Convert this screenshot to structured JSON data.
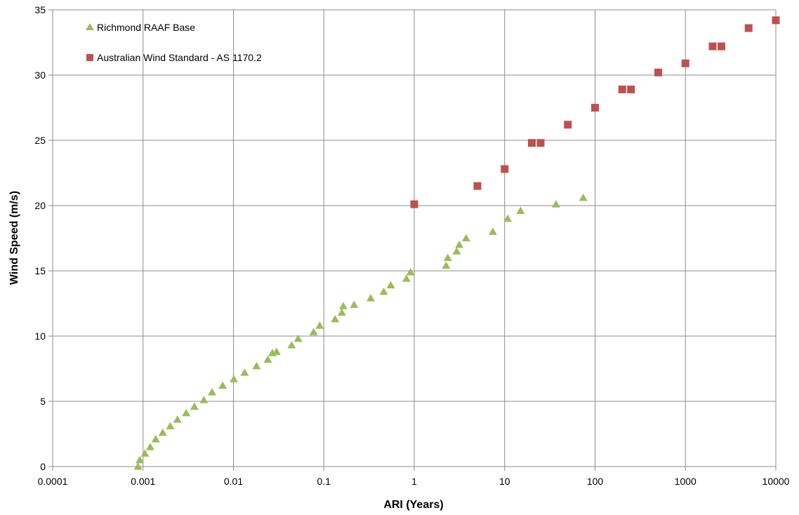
{
  "chart_data": {
    "type": "scatter",
    "title": "",
    "xlabel": "ARI (Years)",
    "ylabel": "Wind Speed (m/s)",
    "x_scale": "log",
    "xlim": [
      0.0001,
      10000
    ],
    "ylim": [
      0,
      35
    ],
    "x_ticks": [
      "0.0001",
      "0.001",
      "0.01",
      "0.1",
      "1",
      "10",
      "100",
      "1000",
      "10000"
    ],
    "y_ticks": [
      "0",
      "5",
      "10",
      "15",
      "20",
      "25",
      "30",
      "35"
    ],
    "grid": true,
    "legend_position": "top-left",
    "series": [
      {
        "name": "Richmond RAAF Base",
        "marker": "triangle",
        "color": "#9bbb59",
        "points": [
          [
            0.00088,
            0.0
          ],
          [
            0.00092,
            0.5
          ],
          [
            0.00105,
            1.0
          ],
          [
            0.0012,
            1.5
          ],
          [
            0.00138,
            2.1
          ],
          [
            0.00165,
            2.6
          ],
          [
            0.002,
            3.1
          ],
          [
            0.0024,
            3.6
          ],
          [
            0.003,
            4.1
          ],
          [
            0.0037,
            4.6
          ],
          [
            0.0047,
            5.1
          ],
          [
            0.0058,
            5.7
          ],
          [
            0.0076,
            6.2
          ],
          [
            0.0101,
            6.7
          ],
          [
            0.0133,
            7.2
          ],
          [
            0.018,
            7.7
          ],
          [
            0.024,
            8.2
          ],
          [
            0.027,
            8.7
          ],
          [
            0.03,
            8.8
          ],
          [
            0.044,
            9.3
          ],
          [
            0.052,
            9.8
          ],
          [
            0.077,
            10.3
          ],
          [
            0.09,
            10.8
          ],
          [
            0.133,
            11.3
          ],
          [
            0.158,
            11.8
          ],
          [
            0.164,
            12.3
          ],
          [
            0.216,
            12.4
          ],
          [
            0.33,
            12.9
          ],
          [
            0.46,
            13.4
          ],
          [
            0.55,
            13.9
          ],
          [
            0.82,
            14.4
          ],
          [
            0.91,
            14.9
          ],
          [
            2.25,
            15.4
          ],
          [
            2.35,
            16.0
          ],
          [
            2.95,
            16.5
          ],
          [
            3.15,
            17.0
          ],
          [
            3.75,
            17.5
          ],
          [
            7.4,
            18.0
          ],
          [
            10.8,
            19.0
          ],
          [
            15.0,
            19.6
          ],
          [
            37,
            20.1
          ],
          [
            74,
            20.6
          ]
        ]
      },
      {
        "name": "Australian Wind Standard - AS 1170.2",
        "marker": "square",
        "color": "#c0504d",
        "points": [
          [
            1,
            20.1
          ],
          [
            5,
            21.5
          ],
          [
            10,
            22.8
          ],
          [
            20,
            24.8
          ],
          [
            25,
            24.8
          ],
          [
            50,
            26.2
          ],
          [
            100,
            27.5
          ],
          [
            200,
            28.9
          ],
          [
            250,
            28.9
          ],
          [
            500,
            30.2
          ],
          [
            1000,
            30.9
          ],
          [
            2000,
            32.2
          ],
          [
            2500,
            32.2
          ],
          [
            5000,
            33.6
          ],
          [
            10000,
            34.2
          ]
        ]
      }
    ]
  }
}
